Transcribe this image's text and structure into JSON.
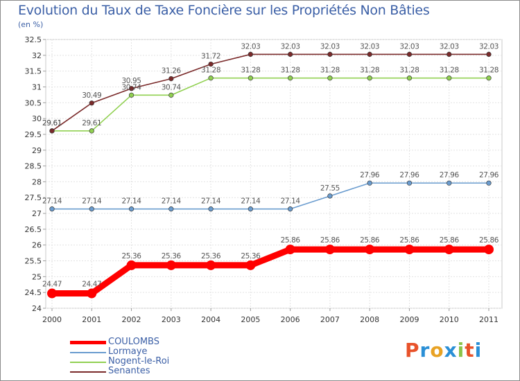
{
  "title": "Evolution du Taux de Taxe Foncière sur les Propriétés Non Bâties",
  "unit": "(en %)",
  "logo": {
    "text": "Proxiti",
    "colors": [
      "#e8522a",
      "#2a8fd6",
      "#e8a224",
      "#2a8fd6",
      "#8bc34a",
      "#e8522a",
      "#2a8fd6"
    ]
  },
  "chart_data": {
    "type": "line",
    "title": "Evolution du Taux de Taxe Foncière sur les Propriétés Non Bâties",
    "xlabel": "",
    "ylabel": "(en %)",
    "ylim": [
      24,
      32.5
    ],
    "y_ticks": [
      "24",
      "24.5",
      "25",
      "25.5",
      "26",
      "26.5",
      "27",
      "27.5",
      "28",
      "28.5",
      "29",
      "29.5",
      "30",
      "30.5",
      "31",
      "31.5",
      "32",
      "32.5"
    ],
    "categories": [
      "2000",
      "2001",
      "2002",
      "2003",
      "2004",
      "2005",
      "2006",
      "2007",
      "2008",
      "2009",
      "2010",
      "2011"
    ],
    "grid": true,
    "legend": "bottom-left",
    "series": [
      {
        "name": "COULOMBS",
        "color": "#ff0000",
        "bold": true,
        "values": [
          24.47,
          24.47,
          25.36,
          25.36,
          25.36,
          25.36,
          25.86,
          25.86,
          25.86,
          25.86,
          25.86,
          25.86
        ],
        "labels": [
          "24.47",
          "24.47",
          "25.36",
          "25.36",
          "25.36",
          "25.36",
          "25.86",
          "25.86",
          "25.86",
          "25.86",
          "25.86",
          "25.86"
        ]
      },
      {
        "name": "Lormaye",
        "color": "#6a9ccf",
        "bold": false,
        "values": [
          27.14,
          27.14,
          27.14,
          27.14,
          27.14,
          27.14,
          27.14,
          27.55,
          27.96,
          27.96,
          27.96,
          27.96
        ],
        "labels": [
          "27.14",
          "27.14",
          "27.14",
          "27.14",
          "27.14",
          "27.14",
          "27.14",
          "27.55",
          "27.96",
          "27.96",
          "27.96",
          "27.96"
        ]
      },
      {
        "name": "Nogent-le-Roi",
        "color": "#90d050",
        "bold": false,
        "values": [
          29.61,
          29.61,
          30.74,
          30.74,
          31.28,
          31.28,
          31.28,
          31.28,
          31.28,
          31.28,
          31.28,
          31.28
        ],
        "labels": [
          "29.61",
          "29.61",
          "30.74",
          "30.74",
          "31.28",
          "31.28",
          "31.28",
          "31.28",
          "31.28",
          "31.28",
          "31.28",
          "31.28"
        ]
      },
      {
        "name": "Senantes",
        "color": "#7a2a2a",
        "bold": false,
        "values": [
          29.61,
          30.49,
          30.95,
          31.26,
          31.72,
          32.03,
          32.03,
          32.03,
          32.03,
          32.03,
          32.03,
          32.03
        ],
        "labels": [
          "29.61",
          "30.49",
          "30.95",
          "31.26",
          "31.72",
          "32.03",
          "32.03",
          "32.03",
          "32.03",
          "32.03",
          "32.03",
          "32.03"
        ]
      }
    ]
  }
}
